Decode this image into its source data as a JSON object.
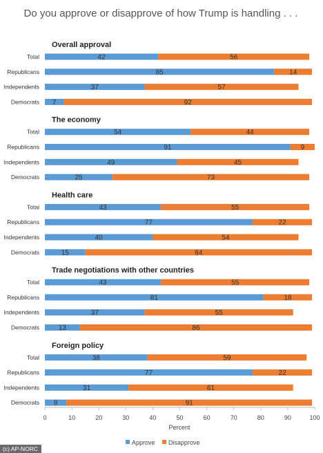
{
  "chart_data": {
    "type": "bar",
    "stacked": true,
    "orientation": "horizontal",
    "title": "Do you approve or disapprove of how Trump is handling . . .",
    "xlabel": "Percent",
    "xlim": [
      0,
      100
    ],
    "xticks": [
      0,
      10,
      20,
      30,
      40,
      50,
      60,
      70,
      80,
      90,
      100
    ],
    "grid": false,
    "legend_position": "bottom",
    "series_names": [
      "Approve",
      "Disapprove"
    ],
    "colors": {
      "approve": "#5b9bd5",
      "disapprove": "#ed7d31"
    },
    "categories": [
      "Total",
      "Republicans",
      "Independents",
      "Democrats"
    ],
    "groups": [
      {
        "title": "Overall approval",
        "approve": [
          42,
          85,
          37,
          7
        ],
        "disapprove": [
          56,
          14,
          57,
          92
        ]
      },
      {
        "title": "The economy",
        "approve": [
          54,
          91,
          49,
          25
        ],
        "disapprove": [
          44,
          9,
          45,
          73
        ]
      },
      {
        "title": "Health care",
        "approve": [
          43,
          77,
          40,
          15
        ],
        "disapprove": [
          55,
          22,
          54,
          84
        ]
      },
      {
        "title": "Trade negotiations with other countries",
        "approve": [
          43,
          81,
          37,
          13
        ],
        "disapprove": [
          55,
          18,
          55,
          86
        ]
      },
      {
        "title": "Foreign policy",
        "approve": [
          38,
          77,
          31,
          8
        ],
        "disapprove": [
          59,
          22,
          61,
          91
        ]
      }
    ]
  },
  "credit": "(c) AP-NORC"
}
